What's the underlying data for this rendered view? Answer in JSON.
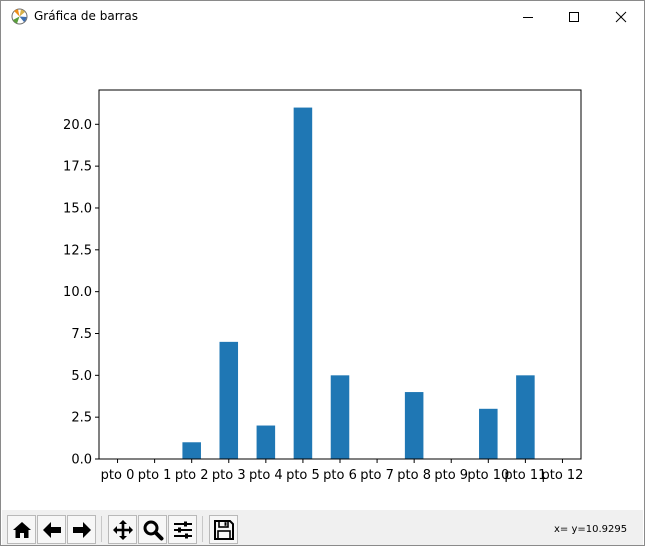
{
  "window": {
    "title": "Gráfica de barras",
    "icon": "matplotlib-logo-icon",
    "controls": [
      "minimize-icon",
      "maximize-icon",
      "close-icon"
    ]
  },
  "toolbar": {
    "buttons": [
      {
        "name": "home-button",
        "icon": "home-icon"
      },
      {
        "name": "back-button",
        "icon": "arrow-left-icon"
      },
      {
        "name": "forward-button",
        "icon": "arrow-right-icon"
      },
      {
        "name": "pan-button",
        "icon": "move-icon"
      },
      {
        "name": "zoom-button",
        "icon": "magnifier-icon"
      },
      {
        "name": "configure-subplots-button",
        "icon": "sliders-icon"
      },
      {
        "name": "save-button",
        "icon": "floppy-disk-icon"
      }
    ],
    "coordinates": "x= y=10.9295"
  },
  "chart_data": {
    "type": "bar",
    "categories": [
      "pto 0",
      "pto 1",
      "pto 2",
      "pto 3",
      "pto 4",
      "pto 5",
      "pto 6",
      "pto 7",
      "pto 8",
      "pto 9",
      "pto 10",
      "pto 11",
      "pto 12"
    ],
    "values": [
      0,
      0,
      1,
      7,
      2,
      21,
      5,
      0,
      4,
      0,
      3,
      5,
      0
    ],
    "ylim": [
      0,
      22.05
    ],
    "yticks": [
      "0.0",
      "2.5",
      "5.0",
      "7.5",
      "10.0",
      "12.5",
      "15.0",
      "17.5",
      "20.0"
    ],
    "bar_color": "#1f77b4",
    "grid": false
  }
}
